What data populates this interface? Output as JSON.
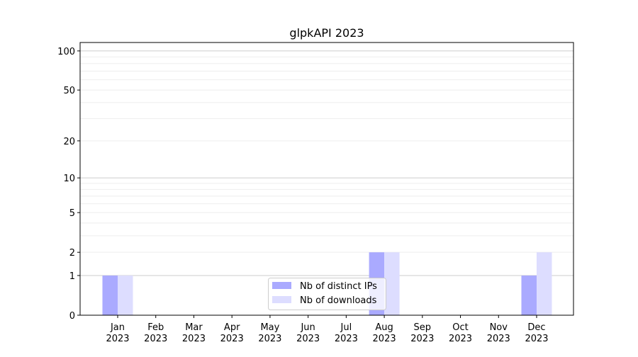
{
  "chart_data": {
    "type": "bar",
    "title": "glpkAPI 2023",
    "xlabel": "",
    "ylabel": "",
    "yscale": "log(1+y)",
    "ylim": [
      0,
      116
    ],
    "yticks": [
      0,
      1,
      2,
      5,
      10,
      20,
      50,
      100
    ],
    "grid": true,
    "legend_position": "bottom-center",
    "categories": [
      "Jan\n2023",
      "Feb\n2023",
      "Mar\n2023",
      "Apr\n2023",
      "May\n2023",
      "Jun\n2023",
      "Jul\n2023",
      "Aug\n2023",
      "Sep\n2023",
      "Oct\n2023",
      "Nov\n2023",
      "Dec\n2023"
    ],
    "series": [
      {
        "name": "Nb of distinct IPs",
        "color": "#aaaaff",
        "values": [
          1,
          0,
          0,
          0,
          0,
          0,
          0,
          2,
          0,
          0,
          0,
          1
        ]
      },
      {
        "name": "Nb of downloads",
        "color": "#ddddff",
        "values": [
          1,
          0,
          0,
          0,
          0,
          0,
          0,
          2,
          0,
          0,
          0,
          2
        ]
      }
    ]
  }
}
